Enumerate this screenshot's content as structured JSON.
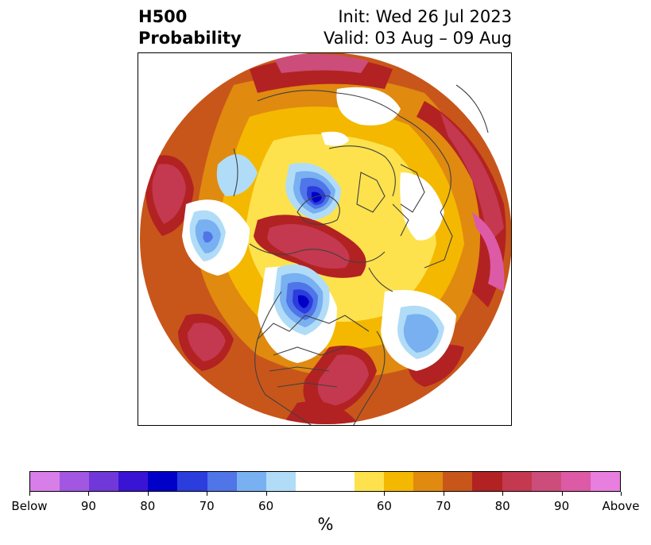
{
  "title": {
    "left_line1": "H500",
    "left_line2": "Probability",
    "right_line1": "Init: Wed 26 Jul 2023",
    "right_line2": "Valid: 03 Aug – 09 Aug"
  },
  "map": {
    "projection": "polar-stereographic-north",
    "field": "500 hPa height anomaly probability"
  },
  "colorbar": {
    "below_colors": [
      "#d77ee8",
      "#a157e2",
      "#7038d8",
      "#3a14d4",
      "#0000c8",
      "#2b3ddd",
      "#4f75e8",
      "#78b0f1",
      "#b0dcf7"
    ],
    "neutral_color": "#ffffff",
    "above_colors": [
      "#fde24d",
      "#f4b800",
      "#e08a10",
      "#c8561a",
      "#b22222",
      "#c4394f",
      "#cc4d7a",
      "#dc5aa6",
      "#e87ede"
    ],
    "tick_labels": [
      "Below",
      "90",
      "80",
      "70",
      "60",
      "60",
      "70",
      "80",
      "90",
      "Above"
    ],
    "units": "%"
  }
}
